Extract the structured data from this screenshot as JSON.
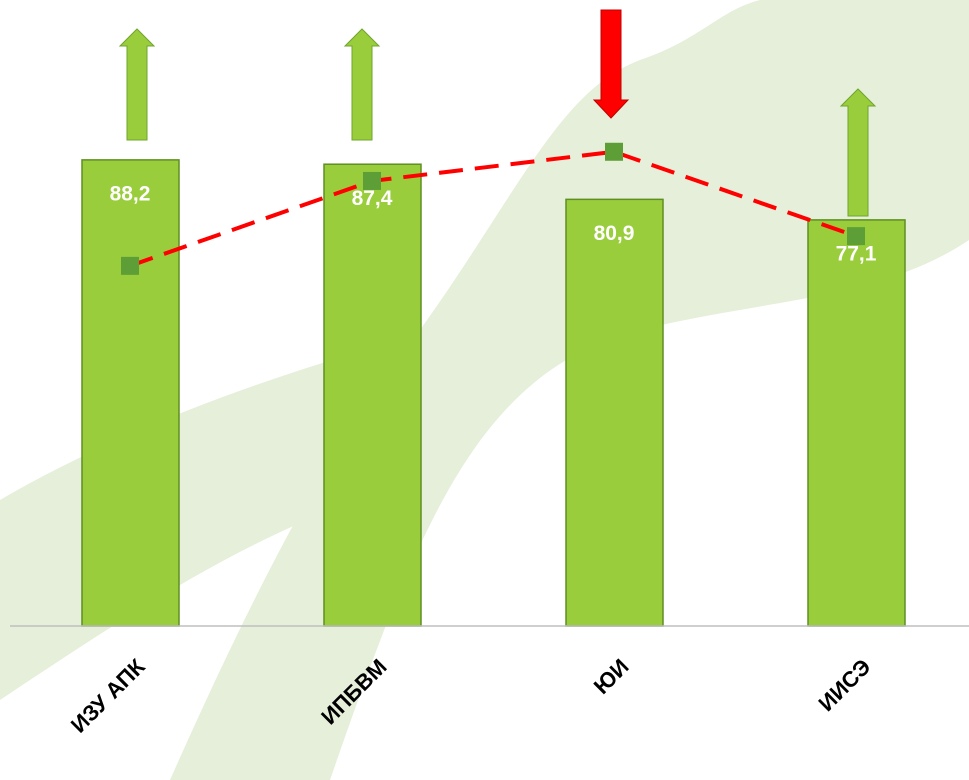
{
  "chart_data": {
    "type": "bar",
    "categories": [
      "ИЗУ АПК",
      "ИПБВМ",
      "ЮИ",
      "ИИСЭ"
    ],
    "series": [
      {
        "type": "bar",
        "color": "#9acd3c",
        "values": [
          88.2,
          87.4,
          80.9,
          77.1
        ],
        "value_labels": [
          "88,2",
          "87,4",
          "80,9",
          "77,1"
        ]
      },
      {
        "type": "line",
        "color": "#ff0000",
        "marker_color": "#5e9e36",
        "values": [
          68.6,
          84.3,
          89.7,
          74.1
        ]
      }
    ],
    "ylim": [
      2,
      110
    ]
  }
}
